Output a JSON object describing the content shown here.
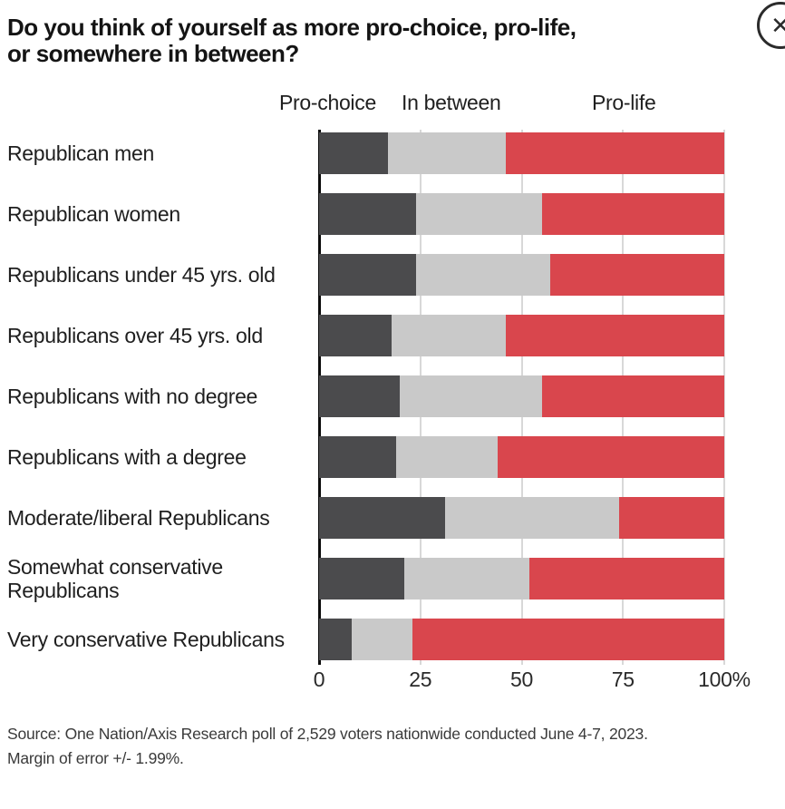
{
  "title": {
    "line1": "Do you think of yourself as more pro-choice, pro-life,",
    "line2": "or somewhere in between?"
  },
  "close_button": {
    "icon": "circle-x-icon",
    "glyph": "✕"
  },
  "legend": [
    "Pro-choice",
    "In between",
    "Pro-life"
  ],
  "chart_data": {
    "type": "bar",
    "orientation": "horizontal",
    "stacked": true,
    "title": "Do you think of yourself as more pro-choice, pro-life, or somewhere in between?",
    "categories": [
      "Republican men",
      "Republican women",
      "Republicans under 45 yrs. old",
      "Republicans over 45 yrs. old",
      "Republicans with no degree",
      "Republicans with a degree",
      "Moderate/liberal Republicans",
      "Somewhat conservative Republicans",
      "Very conservative Republicans"
    ],
    "series": [
      {
        "name": "Pro-choice",
        "color": "#4b4b4d",
        "values": [
          17,
          24,
          24,
          18,
          20,
          19,
          31,
          21,
          8
        ]
      },
      {
        "name": "In between",
        "color": "#c9c9c9",
        "values": [
          29,
          31,
          33,
          28,
          35,
          25,
          43,
          31,
          15
        ]
      },
      {
        "name": "Pro-life",
        "color": "#d9464d",
        "values": [
          54,
          45,
          43,
          54,
          45,
          56,
          26,
          48,
          77
        ]
      }
    ],
    "xlim": [
      0,
      100
    ],
    "x_ticks": [
      {
        "label": "0",
        "value": 0
      },
      {
        "label": "25",
        "value": 25
      },
      {
        "label": "50",
        "value": 50
      },
      {
        "label": "75",
        "value": 75
      },
      {
        "label": "100%",
        "value": 100
      }
    ],
    "gridlines": [
      25,
      50,
      75,
      100
    ],
    "grid": true,
    "legend_position": "top",
    "axis_color": "#0c0c0c",
    "gridline_color": "#d8d8d8"
  },
  "source": {
    "line1": "Source: One Nation/Axis Research poll of 2,529 voters nationwide conducted June 4-7, 2023.",
    "line2": "Margin of error +/- 1.99%."
  }
}
